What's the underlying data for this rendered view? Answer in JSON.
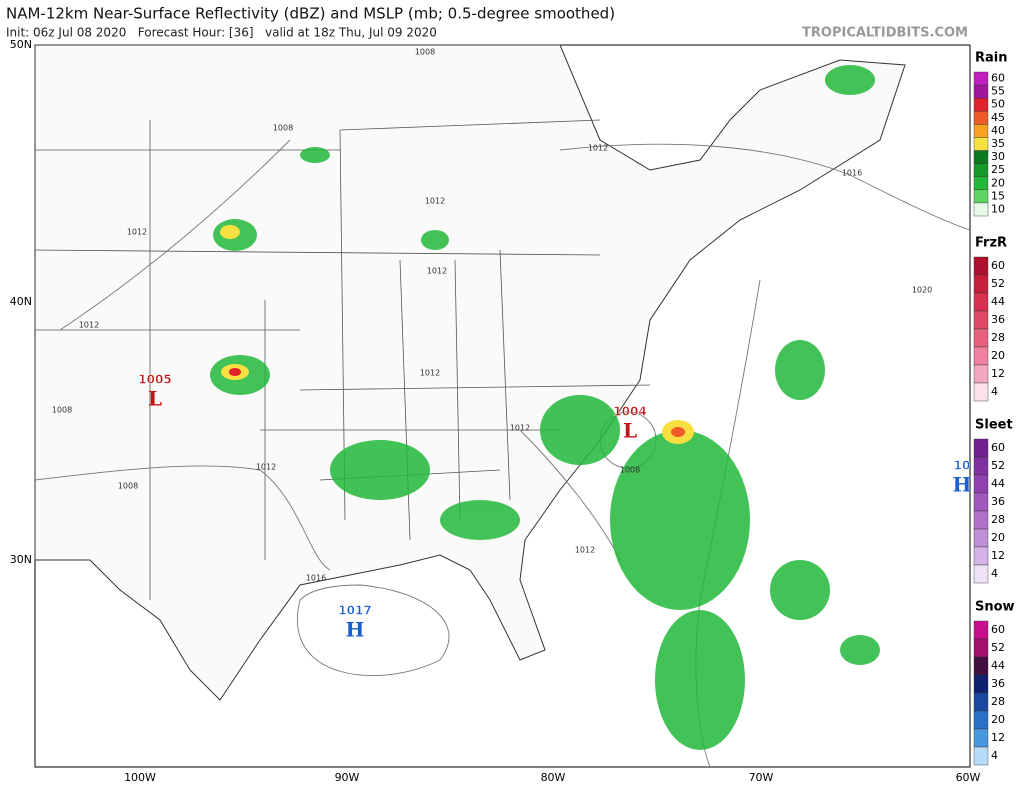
{
  "header": {
    "title": "NAM-12km Near-Surface Reflectivity (dBZ) and MSLP (mb; 0.5-degree smoothed)",
    "subtitle": "Init: 06z Jul 08 2020   Forecast Hour: [36]   valid at 18z Thu, Jul 09 2020",
    "site": "TROPICALTIDBITS.COM"
  },
  "lat_labels": [
    "50N",
    "40N",
    "30N"
  ],
  "lon_labels": [
    "100W",
    "90W",
    "80W",
    "70W",
    "60W"
  ],
  "pressure_centers": [
    {
      "value": "1005",
      "letter": "L"
    },
    {
      "value": "1004",
      "letter": "L"
    },
    {
      "value": "1017",
      "letter": "H"
    },
    {
      "value": "10",
      "letter": "H"
    }
  ],
  "isobar_labels": [
    "1008",
    "1008",
    "1012",
    "1016",
    "1012",
    "1012",
    "1012",
    "1020",
    "1012",
    "1012",
    "1008",
    "1012",
    "1012",
    "1008",
    "1008",
    "1012",
    "1016"
  ],
  "legends": [
    {
      "name": "Rain",
      "ticks": [
        "60",
        "55",
        "50",
        "45",
        "40",
        "35",
        "30",
        "25",
        "20",
        "15",
        "10"
      ],
      "colors": [
        "#c21fc0",
        "#a0159c",
        "#e0202a",
        "#f05a2a",
        "#f8a020",
        "#f8e040",
        "#0c7a20",
        "#159a2a",
        "#22b83a",
        "#5cd660",
        "#e8f8e8"
      ]
    },
    {
      "name": "FrzR",
      "ticks": [
        "60",
        "52",
        "44",
        "36",
        "28",
        "20",
        "12",
        "4"
      ],
      "colors": [
        "#b01030",
        "#c8203c",
        "#d83050",
        "#e04868",
        "#e86080",
        "#f080a0",
        "#f4a8c0",
        "#fce0ea"
      ]
    },
    {
      "name": "Sleet",
      "ticks": [
        "60",
        "52",
        "44",
        "36",
        "28",
        "20",
        "12",
        "4"
      ],
      "colors": [
        "#702090",
        "#8030a0",
        "#9040b0",
        "#a058c0",
        "#b070cc",
        "#c090d8",
        "#d4b4e6",
        "#eee2f6"
      ]
    },
    {
      "name": "Snow",
      "ticks": [
        "60",
        "52",
        "44",
        "36",
        "28",
        "20",
        "12",
        "4"
      ],
      "colors": [
        "#c8108c",
        "#a0106c",
        "#401040",
        "#102070",
        "#1848a0",
        "#2870c8",
        "#4898e0",
        "#b8dcf8"
      ]
    }
  ]
}
